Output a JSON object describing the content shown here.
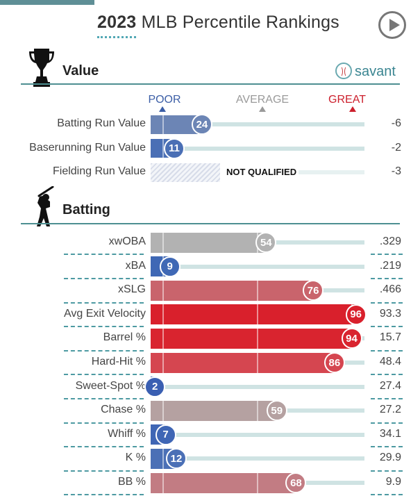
{
  "header": {
    "title_year": "2023",
    "title_rest": "MLB Percentile Rankings",
    "play_icon": "play-circle-icon"
  },
  "brand": {
    "label": "savant",
    "icon": "baseball-icon"
  },
  "scale": {
    "poor": "POOR",
    "average": "AVERAGE",
    "great": "GREAT"
  },
  "sections": {
    "value": {
      "title": "Value",
      "icon": "trophy-icon"
    },
    "batting": {
      "title": "Batting",
      "icon": "batter-icon"
    }
  },
  "not_qualified_label": "NOT QUALIFIED",
  "colors": {
    "poor": "#3b66b5",
    "average": "#a9a9a9",
    "great": "#d42230",
    "track": "#cfe3e3",
    "section_line": "#4d8f91"
  },
  "chart_data": {
    "type": "bar",
    "xlim": [
      0,
      100
    ],
    "value_rows": [
      {
        "label": "Batting Run Value",
        "percentile": 24,
        "value": "-6",
        "color": "#6c85b5",
        "qualified": true
      },
      {
        "label": "Baserunning Run Value",
        "percentile": 11,
        "value": "-2",
        "color": "#4a6fb5",
        "qualified": true
      },
      {
        "label": "Fielding Run Value",
        "percentile": null,
        "value": "-3",
        "color": "#c9d0e0",
        "qualified": false
      }
    ],
    "batting_rows": [
      {
        "label": "xwOBA",
        "percentile": 54,
        "value": ".329",
        "color": "#b2b2b2"
      },
      {
        "label": "xBA",
        "percentile": 9,
        "value": ".219",
        "color": "#3f68b5"
      },
      {
        "label": "xSLG",
        "percentile": 76,
        "value": ".466",
        "color": "#c9646c"
      },
      {
        "label": "Avg Exit Velocity",
        "percentile": 96,
        "value": "93.3",
        "color": "#d9202c"
      },
      {
        "label": "Barrel %",
        "percentile": 94,
        "value": "15.7",
        "color": "#d9242f"
      },
      {
        "label": "Hard-Hit %",
        "percentile": 86,
        "value": "48.4",
        "color": "#d54650"
      },
      {
        "label": "Sweet-Spot %",
        "percentile": 2,
        "value": "27.4",
        "color": "#3a5fb2"
      },
      {
        "label": "Chase %",
        "percentile": 59,
        "value": "27.2",
        "color": "#b5a1a1"
      },
      {
        "label": "Whiff %",
        "percentile": 7,
        "value": "34.1",
        "color": "#3f66b5"
      },
      {
        "label": "K %",
        "percentile": 12,
        "value": "29.9",
        "color": "#4b70b6"
      },
      {
        "label": "BB %",
        "percentile": 68,
        "value": "9.9",
        "color": "#c27c83"
      }
    ]
  }
}
